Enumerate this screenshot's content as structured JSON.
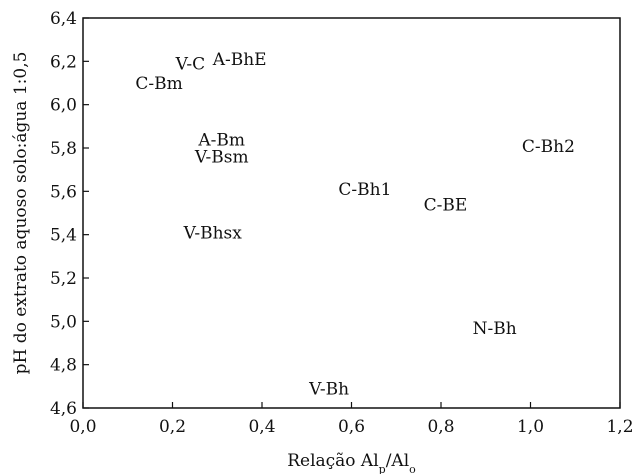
{
  "chart_data": {
    "type": "scatter",
    "xlabel": "Relação Al",
    "xlabel_sub1": "p",
    "xlabel_mid": "/Al",
    "xlabel_sub2": "o",
    "ylabel": "pH do extrato aquoso solo:água 1:0,5",
    "xlim": [
      0.0,
      1.2
    ],
    "ylim": [
      4.6,
      6.4
    ],
    "x_ticks": [
      0.0,
      0.2,
      0.4,
      0.6,
      0.8,
      1.0,
      1.2
    ],
    "y_ticks": [
      4.6,
      4.8,
      5.0,
      5.2,
      5.4,
      5.6,
      5.8,
      6.0,
      6.2,
      6.4
    ],
    "x_tick_labels": [
      "0,0",
      "0,2",
      "0,4",
      "0,6",
      "0,8",
      "1,0",
      "1,2"
    ],
    "y_tick_labels": [
      "4,6",
      "4,8",
      "5,0",
      "5,2",
      "5,4",
      "5,6",
      "5,8",
      "6,0",
      "6,2",
      "6,4"
    ],
    "grid": false,
    "points": [
      {
        "label": "V-C",
        "x": 0.24,
        "y": 6.19
      },
      {
        "label": "A-BhE",
        "x": 0.35,
        "y": 6.21
      },
      {
        "label": "C-Bm",
        "x": 0.17,
        "y": 6.1
      },
      {
        "label": "A-Bm",
        "x": 0.31,
        "y": 5.84
      },
      {
        "label": "V-Bsm",
        "x": 0.31,
        "y": 5.76
      },
      {
        "label": "C-Bh1",
        "x": 0.63,
        "y": 5.61
      },
      {
        "label": "C-BE",
        "x": 0.81,
        "y": 5.54
      },
      {
        "label": "C-Bh2",
        "x": 1.04,
        "y": 5.81
      },
      {
        "label": "V-Bhsx",
        "x": 0.29,
        "y": 5.41
      },
      {
        "label": "N-Bh",
        "x": 0.92,
        "y": 4.97
      },
      {
        "label": "V-Bh",
        "x": 0.55,
        "y": 4.69
      }
    ]
  }
}
